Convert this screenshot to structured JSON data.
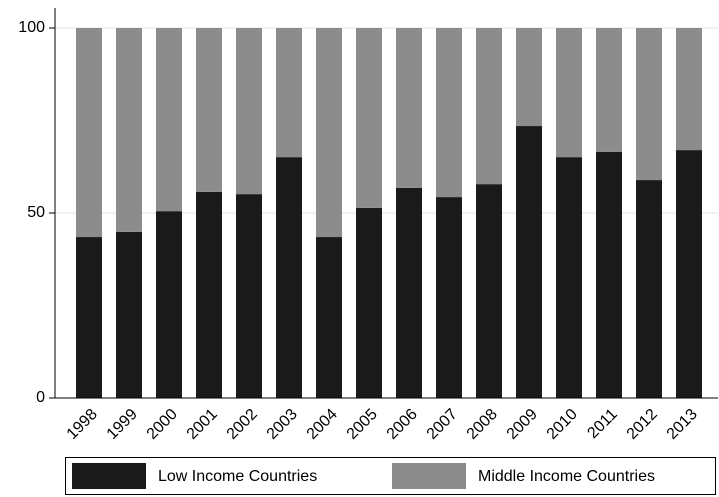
{
  "chart_data": {
    "type": "stacked_bar",
    "categories": [
      "1998",
      "1999",
      "2000",
      "2001",
      "2002",
      "2003",
      "2004",
      "2005",
      "2006",
      "2007",
      "2008",
      "2009",
      "2010",
      "2011",
      "2012",
      "2013"
    ],
    "series": [
      {
        "name": "Low Income Countries",
        "color": "#1a1a1a",
        "values": [
          43.5,
          44.9,
          50.5,
          55.7,
          55.1,
          65.1,
          43.5,
          51.4,
          56.8,
          54.3,
          57.8,
          73.5,
          65.1,
          66.5,
          58.9,
          67.0
        ]
      },
      {
        "name": "Middle Income Countries",
        "color": "#8c8c8c",
        "values": [
          56.5,
          55.1,
          49.5,
          44.3,
          44.9,
          34.9,
          56.5,
          48.6,
          43.2,
          45.7,
          42.2,
          26.5,
          34.9,
          33.5,
          41.1,
          33.0
        ]
      }
    ],
    "ylim": [
      0,
      100
    ],
    "yticks": [
      0,
      50,
      100
    ],
    "grid": true,
    "legend": "bottom"
  }
}
